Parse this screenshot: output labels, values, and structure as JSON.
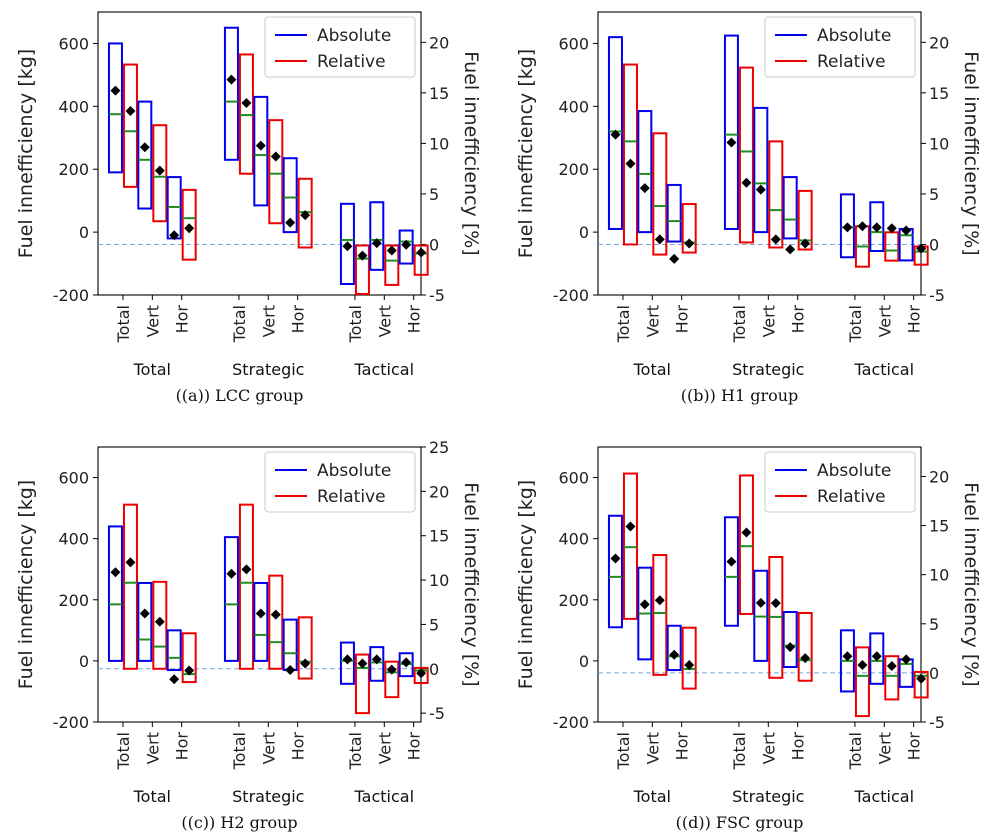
{
  "chart_data": [
    {
      "type": "box",
      "caption": "((a)) LCC group",
      "ylabel": "Fuel innefficiency [kg]",
      "ylabel_right": "Fuel innefficiency [%]",
      "ylim": [
        -200,
        700
      ],
      "yticks": [
        -200,
        0,
        200,
        400,
        600
      ],
      "ylim_right": [
        -5,
        23
      ],
      "yticks_right": [
        -5,
        0,
        5,
        10,
        15,
        20
      ],
      "baseline_right": 0,
      "categories": [
        "Total",
        "Vert",
        "Hor",
        "Total",
        "Vert",
        "Hor",
        "Total",
        "Vert",
        "Hor"
      ],
      "groups": [
        "Total",
        "Strategic",
        "Tactical"
      ],
      "legend": [
        "Absolute",
        "Relative"
      ],
      "legend_position": "top-right",
      "colors": {
        "absolute": "#0000ee",
        "relative": "#ee0000",
        "median": "#228b22",
        "mean": "#000000",
        "baseline": "#7aa3d6"
      },
      "series": [
        {
          "name": "Absolute",
          "axis": "left",
          "boxes": [
            {
              "low": 190,
              "high": 600,
              "median": 375
            },
            {
              "low": 75,
              "high": 415,
              "median": 230
            },
            {
              "low": -20,
              "high": 175,
              "median": 80
            },
            {
              "low": 230,
              "high": 650,
              "median": 415
            },
            {
              "low": 85,
              "high": 430,
              "median": 245
            },
            {
              "low": 0,
              "high": 235,
              "median": 110
            },
            {
              "low": -165,
              "high": 90,
              "median": -25
            },
            {
              "low": -120,
              "high": 95,
              "median": -25
            },
            {
              "low": -100,
              "high": 5,
              "median": -30
            }
          ]
        },
        {
          "name": "Relative",
          "axis": "right",
          "boxes": [
            {
              "low": 5.7,
              "high": 17.8,
              "median": 11.2
            },
            {
              "low": 2.3,
              "high": 11.8,
              "median": 6.7
            },
            {
              "low": -1.5,
              "high": 5.4,
              "median": 2.6
            },
            {
              "low": 7.0,
              "high": 18.8,
              "median": 12.8
            },
            {
              "low": 2.1,
              "high": 12.3,
              "median": 7.0
            },
            {
              "low": -0.3,
              "high": 6.5,
              "median": 3.2
            },
            {
              "low": -4.9,
              "high": -0.1,
              "median": -1.4
            },
            {
              "low": -4.0,
              "high": -0.1,
              "median": -1.6
            },
            {
              "low": -3.0,
              "high": -0.1,
              "median": -0.9
            }
          ]
        },
        {
          "name": "Mean",
          "axis": "left",
          "values": [
            450,
            270,
            -10,
            485,
            275,
            30,
            -45,
            -35,
            -40
          ]
        },
        {
          "name": "Mean",
          "axis": "right",
          "values": [
            13.2,
            7.3,
            1.6,
            14.0,
            8.7,
            2.9,
            -1.1,
            -0.6,
            -0.8
          ]
        }
      ]
    },
    {
      "type": "box",
      "caption": "((b)) H1 group",
      "ylabel": "Fuel innefficiency [kg]",
      "ylabel_right": "Fuel innefficiency [%]",
      "ylim": [
        -200,
        700
      ],
      "yticks": [
        -200,
        0,
        200,
        400,
        600
      ],
      "ylim_right": [
        -5,
        23
      ],
      "yticks_right": [
        -5,
        0,
        5,
        10,
        15,
        20
      ],
      "baseline_right": 0,
      "categories": [
        "Total",
        "Vert",
        "Hor",
        "Total",
        "Vert",
        "Hor",
        "Total",
        "Vert",
        "Hor"
      ],
      "groups": [
        "Total",
        "Strategic",
        "Tactical"
      ],
      "legend": [
        "Absolute",
        "Relative"
      ],
      "legend_position": "top-right",
      "colors": {
        "absolute": "#0000ee",
        "relative": "#ee0000",
        "median": "#228b22",
        "mean": "#000000",
        "baseline": "#7aa3d6"
      },
      "series": [
        {
          "name": "Absolute",
          "axis": "left",
          "boxes": [
            {
              "low": 10,
              "high": 620,
              "median": 320
            },
            {
              "low": 0,
              "high": 385,
              "median": 185
            },
            {
              "low": -30,
              "high": 150,
              "median": 35
            },
            {
              "low": 10,
              "high": 625,
              "median": 310
            },
            {
              "low": 0,
              "high": 395,
              "median": 155
            },
            {
              "low": -20,
              "high": 175,
              "median": 40
            },
            {
              "low": -80,
              "high": 120,
              "median": 15
            },
            {
              "low": -60,
              "high": 95,
              "median": 0
            },
            {
              "low": -90,
              "high": 10,
              "median": -10
            }
          ]
        },
        {
          "name": "Relative",
          "axis": "right",
          "boxes": [
            {
              "low": 0.0,
              "high": 17.8,
              "median": 10.2
            },
            {
              "low": -1.0,
              "high": 11.0,
              "median": 3.8
            },
            {
              "low": -0.8,
              "high": 4.0,
              "median": 0.2
            },
            {
              "low": 0.2,
              "high": 17.5,
              "median": 9.2
            },
            {
              "low": -0.3,
              "high": 10.2,
              "median": 3.4
            },
            {
              "low": -0.5,
              "high": 5.3,
              "median": 0.4
            },
            {
              "low": -2.2,
              "high": 1.8,
              "median": -0.2
            },
            {
              "low": -1.6,
              "high": 1.2,
              "median": -0.6
            },
            {
              "low": -2.0,
              "high": -0.2,
              "median": -0.7
            }
          ]
        },
        {
          "name": "Mean",
          "axis": "left",
          "values": [
            310,
            140,
            -85,
            285,
            135,
            -55,
            15,
            15,
            5
          ]
        },
        {
          "name": "Mean",
          "axis": "right",
          "values": [
            8.0,
            0.5,
            0.1,
            6.1,
            0.5,
            0.1,
            1.8,
            1.6,
            -0.4
          ]
        }
      ]
    },
    {
      "type": "box",
      "caption": "((c)) H2 group",
      "ylabel": "Fuel innefficiency [kg]",
      "ylabel_right": "Fuel innefficiency [%]",
      "ylim": [
        -200,
        700
      ],
      "yticks": [
        -200,
        0,
        200,
        400,
        600
      ],
      "ylim_right": [
        -6,
        25
      ],
      "yticks_right": [
        -5,
        0,
        5,
        10,
        15,
        20,
        25
      ],
      "baseline_right": 0,
      "categories": [
        "Total",
        "Vert",
        "Hor",
        "Total",
        "Vert",
        "Hor",
        "Total",
        "Vert",
        "Hor"
      ],
      "groups": [
        "Total",
        "Strategic",
        "Tactical"
      ],
      "legend": [
        "Absolute",
        "Relative"
      ],
      "legend_position": "top-right",
      "colors": {
        "absolute": "#0000ee",
        "relative": "#ee0000",
        "median": "#228b22",
        "mean": "#000000",
        "baseline": "#7aa3d6"
      },
      "series": [
        {
          "name": "Absolute",
          "axis": "left",
          "boxes": [
            {
              "low": 0,
              "high": 440,
              "median": 185
            },
            {
              "low": 0,
              "high": 255,
              "median": 70
            },
            {
              "low": -30,
              "high": 100,
              "median": 10
            },
            {
              "low": 0,
              "high": 405,
              "median": 185
            },
            {
              "low": 0,
              "high": 255,
              "median": 85
            },
            {
              "low": -30,
              "high": 135,
              "median": 25
            },
            {
              "low": -75,
              "high": 60,
              "median": 0
            },
            {
              "low": -65,
              "high": 45,
              "median": -5
            },
            {
              "low": -50,
              "high": 25,
              "median": -10
            }
          ]
        },
        {
          "name": "Relative",
          "axis": "right",
          "boxes": [
            {
              "low": 0.0,
              "high": 18.5,
              "median": 9.7
            },
            {
              "low": 0.0,
              "high": 9.8,
              "median": 2.5
            },
            {
              "low": -1.5,
              "high": 4.0,
              "median": -0.6
            },
            {
              "low": 0.0,
              "high": 18.5,
              "median": 9.7
            },
            {
              "low": 0.0,
              "high": 10.5,
              "median": 3.0
            },
            {
              "low": -1.1,
              "high": 5.8,
              "median": 0.8
            },
            {
              "low": -5.0,
              "high": 1.6,
              "median": 0.1
            },
            {
              "low": -3.2,
              "high": 0.8,
              "median": -0.4
            },
            {
              "low": -1.6,
              "high": 0.1,
              "median": -0.2
            }
          ]
        },
        {
          "name": "Mean",
          "axis": "left",
          "values": [
            290,
            155,
            -60,
            285,
            155,
            -30,
            5,
            5,
            -5
          ]
        },
        {
          "name": "Mean",
          "axis": "right",
          "values": [
            12.0,
            5.3,
            -0.2,
            11.2,
            6.1,
            0.6,
            0.6,
            -0.1,
            -0.5
          ]
        }
      ]
    },
    {
      "type": "box",
      "caption": "((d)) FSC group",
      "ylabel": "Fuel innefficiency [kg]",
      "ylabel_right": "Fuel innefficiency [%]",
      "ylim": [
        -200,
        700
      ],
      "yticks": [
        -200,
        0,
        200,
        400,
        600
      ],
      "ylim_right": [
        -5,
        23
      ],
      "yticks_right": [
        -5,
        0,
        5,
        10,
        15,
        20
      ],
      "baseline_right": 0,
      "categories": [
        "Total",
        "Vert",
        "Hor",
        "Total",
        "Vert",
        "Hor",
        "Total",
        "Vert",
        "Hor"
      ],
      "groups": [
        "Total",
        "Strategic",
        "Tactical"
      ],
      "legend": [
        "Absolute",
        "Relative"
      ],
      "legend_position": "top-right",
      "colors": {
        "absolute": "#0000ee",
        "relative": "#ee0000",
        "median": "#228b22",
        "mean": "#000000",
        "baseline": "#7aa3d6"
      },
      "series": [
        {
          "name": "Absolute",
          "axis": "left",
          "boxes": [
            {
              "low": 110,
              "high": 475,
              "median": 275
            },
            {
              "low": 5,
              "high": 305,
              "median": 155
            },
            {
              "low": -30,
              "high": 115,
              "median": 15
            },
            {
              "low": 115,
              "high": 470,
              "median": 275
            },
            {
              "low": 0,
              "high": 295,
              "median": 145
            },
            {
              "low": -20,
              "high": 160,
              "median": 50
            },
            {
              "low": -100,
              "high": 100,
              "median": 0
            },
            {
              "low": -75,
              "high": 90,
              "median": 0
            },
            {
              "low": -85,
              "high": 5,
              "median": -10
            }
          ]
        },
        {
          "name": "Relative",
          "axis": "right",
          "boxes": [
            {
              "low": 5.5,
              "high": 20.3,
              "median": 12.8
            },
            {
              "low": -0.2,
              "high": 12.0,
              "median": 6.1
            },
            {
              "low": -1.6,
              "high": 4.6,
              "median": 0.4
            },
            {
              "low": 6.0,
              "high": 20.1,
              "median": 12.9
            },
            {
              "low": -0.5,
              "high": 11.8,
              "median": 5.7
            },
            {
              "low": -0.8,
              "high": 6.1,
              "median": 1.3
            },
            {
              "low": -4.4,
              "high": 2.6,
              "median": -0.3
            },
            {
              "low": -2.7,
              "high": 1.7,
              "median": -0.3
            },
            {
              "low": -2.5,
              "high": 0.1,
              "median": -0.3
            }
          ]
        },
        {
          "name": "Mean",
          "axis": "left",
          "values": [
            335,
            185,
            20,
            325,
            190,
            45,
            15,
            15,
            5
          ]
        },
        {
          "name": "Mean",
          "axis": "right",
          "values": [
            14.9,
            7.4,
            0.8,
            14.3,
            7.1,
            1.5,
            0.8,
            0.7,
            -0.6
          ]
        }
      ]
    }
  ]
}
